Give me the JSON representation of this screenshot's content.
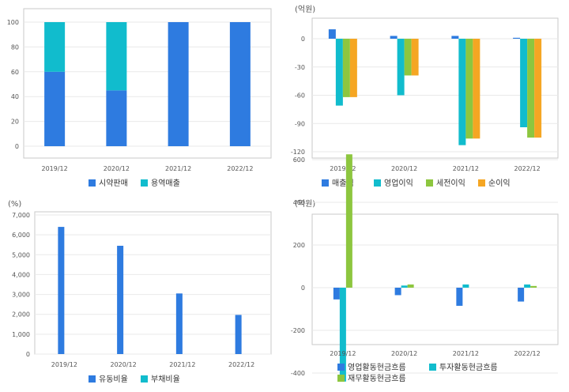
{
  "colors": {
    "blue": "#2e7be0",
    "teal": "#11bccd",
    "green": "#8dc63f",
    "orange": "#f5a623",
    "grid": "#e6e6e6",
    "frame": "#c8c8c8",
    "text": "#555555"
  },
  "chart_data": [
    {
      "type": "bar",
      "stacked": true,
      "unit": "",
      "categories": [
        "2019/12",
        "2020/12",
        "2021/12",
        "2022/12"
      ],
      "series": [
        {
          "name": "시약판매",
          "color": "#2e7be0",
          "values": [
            60,
            45,
            100,
            100
          ]
        },
        {
          "name": "용역매출",
          "color": "#11bccd",
          "values": [
            40,
            55,
            0,
            0
          ]
        }
      ],
      "ylim": [
        -10,
        105
      ],
      "yticks": [
        0,
        20,
        40,
        60,
        80,
        100
      ],
      "ytick_labels": [
        "0",
        "20",
        "40",
        "60",
        "80",
        "100"
      ],
      "grid": true,
      "legend": "bottom"
    },
    {
      "type": "bar",
      "stacked": false,
      "unit": "(억원)",
      "categories": [
        "2019/12",
        "2020/12",
        "2021/12",
        "2022/12"
      ],
      "series": [
        {
          "name": "매출액",
          "color": "#2e7be0",
          "values": [
            10,
            3,
            3,
            1
          ]
        },
        {
          "name": "영업이익",
          "color": "#11bccd",
          "values": [
            -71,
            -60,
            -113,
            -94
          ]
        },
        {
          "name": "세전이익",
          "color": "#8dc63f",
          "values": [
            -62,
            -39,
            -106,
            -105
          ]
        },
        {
          "name": "순이익",
          "color": "#f5a623",
          "values": [
            -62,
            -39,
            -106,
            -105
          ]
        }
      ],
      "ylim": [
        -128,
        12
      ],
      "yticks": [
        0,
        -30,
        -60,
        -90,
        -120
      ],
      "ytick_labels": [
        "0",
        "-30",
        "-60",
        "-90",
        "-120"
      ],
      "grid": true,
      "legend": "bottom"
    },
    {
      "type": "bar",
      "stacked": false,
      "unit": "(%)",
      "categories": [
        "2019/12",
        "2020/12",
        "2021/12",
        "2022/12"
      ],
      "series": [
        {
          "name": "유동비율",
          "color": "#2e7be0",
          "values": [
            6400,
            5450,
            3050,
            1970
          ]
        },
        {
          "name": "부채비율",
          "color": "#11bccd",
          "values": [
            0,
            0,
            0,
            0
          ]
        }
      ],
      "ylim": [
        0,
        7000
      ],
      "yticks": [
        0,
        1000,
        2000,
        3000,
        4000,
        5000,
        6000,
        7000
      ],
      "ytick_labels": [
        "0",
        "1,000",
        "2,000",
        "3,000",
        "4,000",
        "5,000",
        "6,000",
        "7,000"
      ],
      "grid": true,
      "legend": "bottom"
    },
    {
      "type": "bar",
      "stacked": false,
      "unit": "(억원)",
      "categories": [
        "2019/12",
        "2020/12",
        "2021/12",
        "2022/12"
      ],
      "series": [
        {
          "name": "영업활동현금흐름",
          "color": "#2e7be0",
          "values": [
            -55,
            -35,
            -85,
            -65
          ]
        },
        {
          "name": "투자활동현금흐름",
          "color": "#11bccd",
          "values": [
            -440,
            10,
            15,
            15
          ]
        },
        {
          "name": "재무활동현금흐름",
          "color": "#8dc63f",
          "values": [
            625,
            15,
            0,
            8
          ]
        }
      ],
      "ylim": [
        -520,
        680
      ],
      "yticks": [
        600,
        400,
        200,
        0,
        -200,
        -400
      ],
      "ytick_labels": [
        "600",
        "400",
        "200",
        "0",
        "-200",
        "-400"
      ],
      "grid": true,
      "legend": "bottom"
    }
  ]
}
